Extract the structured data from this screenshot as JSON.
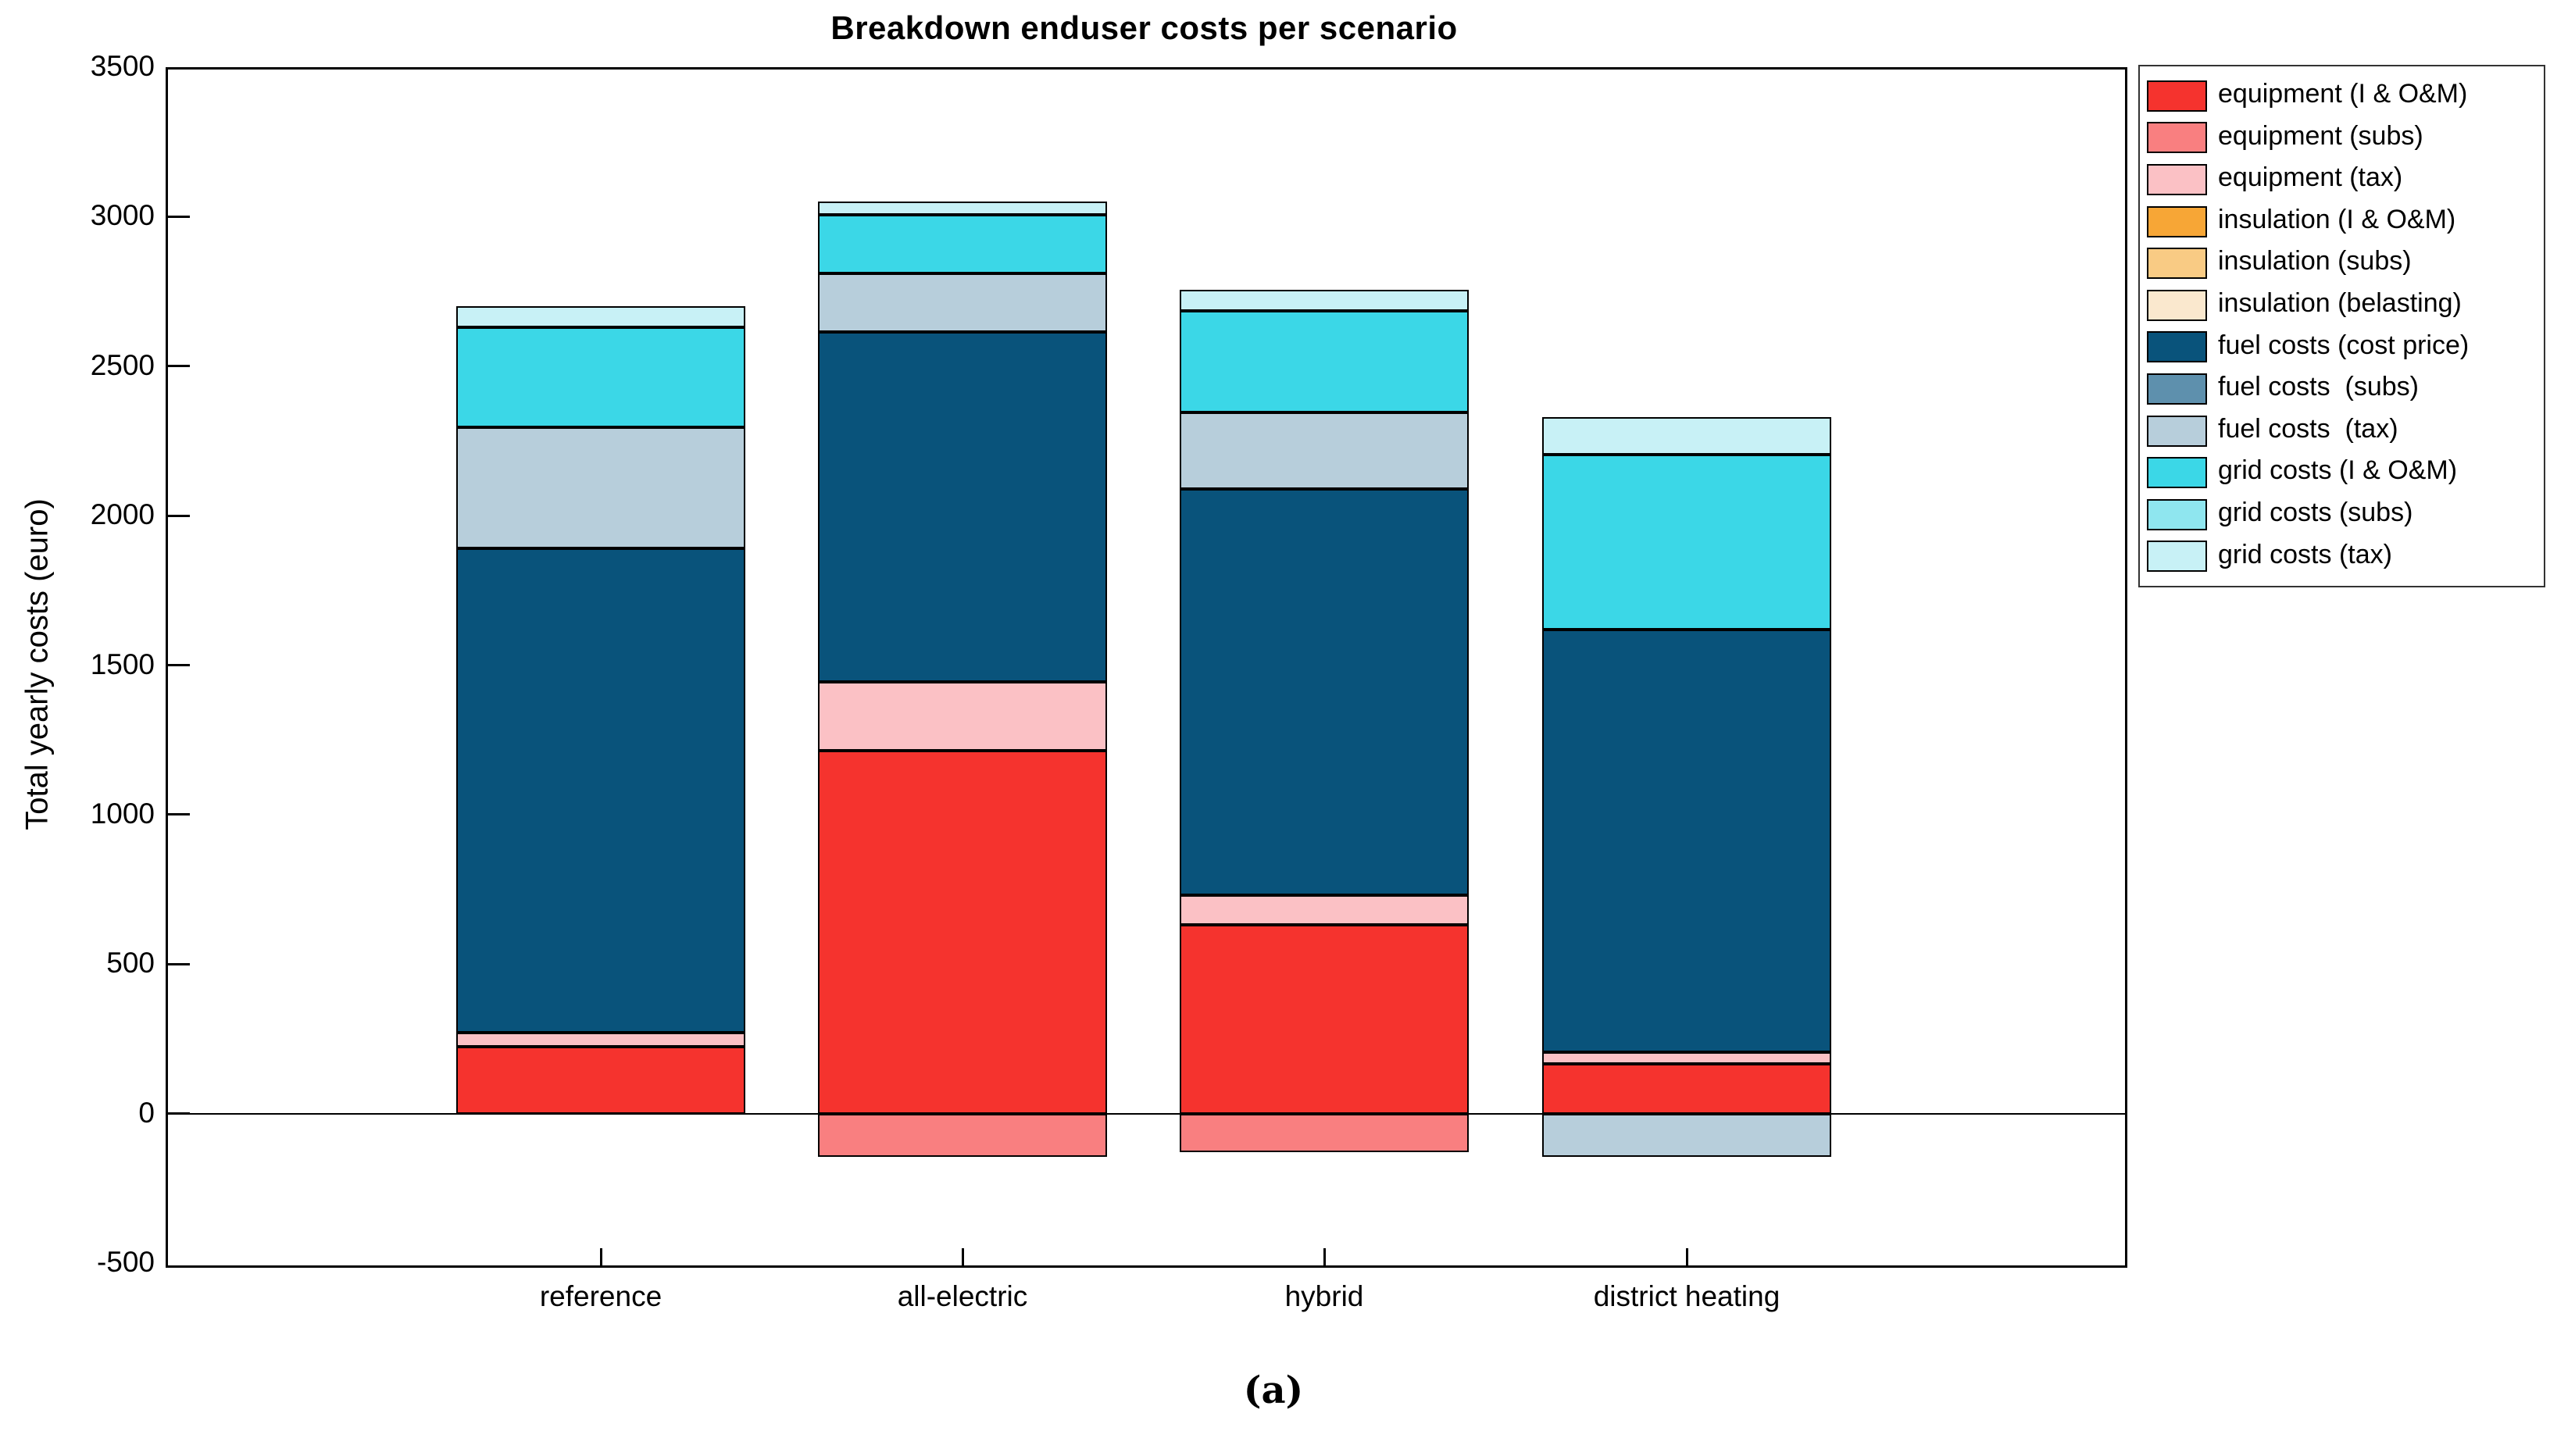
{
  "caption": "(a)",
  "chart_data": {
    "type": "bar",
    "stacked": true,
    "title": "Breakdown enduser costs per scenario",
    "ylabel": "Total yearly costs (euro)",
    "xlabel": "",
    "categories": [
      "reference",
      "all-electric",
      "hybrid",
      "district heating"
    ],
    "ylim": [
      -500,
      3500
    ],
    "ytick_labels": [
      "-500",
      "0",
      "500",
      "1000",
      "1500",
      "2000",
      "2500",
      "3000",
      "3500"
    ],
    "grid": false,
    "legend_position": "outside-right",
    "bar_outline_color": "#000000",
    "series": [
      {
        "name": "equipment (I & O&M)",
        "color": "#F5332E",
        "values": [
          225,
          1215,
          630,
          165
        ]
      },
      {
        "name": "equipment (subs)",
        "color": "#F97F80",
        "values": [
          0,
          -145,
          -130,
          0
        ]
      },
      {
        "name": "equipment (tax)",
        "color": "#FBC1C5",
        "values": [
          45,
          230,
          100,
          40
        ]
      },
      {
        "name": "insulation (I & O&M)",
        "color": "#F7A636",
        "values": [
          0,
          0,
          0,
          0
        ]
      },
      {
        "name": "insulation (subs)",
        "color": "#F9CB84",
        "values": [
          0,
          0,
          0,
          0
        ]
      },
      {
        "name": "insulation (belasting)",
        "color": "#FAE8CE",
        "values": [
          0,
          0,
          0,
          0
        ]
      },
      {
        "name": "fuel costs (cost price)",
        "color": "#09537B",
        "values": [
          1620,
          1170,
          1360,
          1415
        ]
      },
      {
        "name": "fuel costs  (subs)",
        "color": "#5E90AD",
        "values": [
          0,
          0,
          0,
          0
        ]
      },
      {
        "name": "fuel costs  (tax)",
        "color": "#B7CEDB",
        "values": [
          405,
          195,
          255,
          -145
        ]
      },
      {
        "name": "grid costs (I & O&M)",
        "color": "#3BD7E7",
        "values": [
          335,
          195,
          340,
          585
        ]
      },
      {
        "name": "grid costs (subs)",
        "color": "#8FE6EF",
        "values": [
          0,
          0,
          0,
          0
        ]
      },
      {
        "name": "grid costs (tax)",
        "color": "#C8F1F6",
        "values": [
          70,
          45,
          70,
          125
        ]
      }
    ]
  }
}
